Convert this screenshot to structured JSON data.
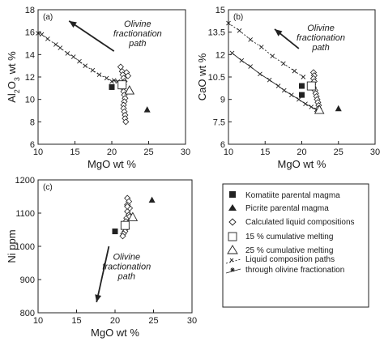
{
  "chart_data": [
    {
      "panel": "(a)",
      "type": "scatter",
      "xlabel": "MgO wt %",
      "ylabel": "Al2O3 wt %",
      "ylabel_parts": [
        "Al",
        "2",
        "O",
        "3",
        " wt %"
      ],
      "xlim": [
        10,
        30
      ],
      "ylim": [
        6,
        18
      ],
      "xticks": [
        10,
        15,
        20,
        25,
        30
      ],
      "yticks": [
        6,
        8,
        10,
        12,
        14,
        16,
        18
      ],
      "annotation": {
        "lines": [
          "Olivine",
          "fractionation",
          "path"
        ],
        "arrow_from": [
          20.3,
          14.3
        ],
        "arrow_to": [
          14.2,
          17.0
        ],
        "text_at": [
          23.5,
          16.5
        ]
      },
      "paths": [
        {
          "marker": "x",
          "dashed": true,
          "points": [
            [
              10.0,
              15.9
            ],
            [
              10.5,
              15.8
            ],
            [
              11.3,
              15.4
            ],
            [
              12.4,
              14.9
            ],
            [
              13.0,
              14.6
            ],
            [
              14.0,
              14.1
            ],
            [
              14.8,
              13.8
            ],
            [
              15.6,
              13.4
            ],
            [
              16.4,
              13.0
            ],
            [
              17.4,
              12.6
            ],
            [
              18.3,
              12.2
            ],
            [
              19.3,
              11.9
            ],
            [
              20.0,
              11.6
            ]
          ]
        },
        {
          "marker": "x",
          "dashed": false,
          "points": [
            [
              20.3,
              11.7
            ],
            [
              20.8,
              11.6
            ]
          ]
        }
      ],
      "calculated": [
        [
          21.2,
          12.9
        ],
        [
          21.4,
          12.5
        ],
        [
          21.5,
          12.2
        ],
        [
          21.6,
          11.9
        ],
        [
          21.7,
          11.6
        ],
        [
          21.6,
          11.3
        ],
        [
          21.5,
          11.0
        ],
        [
          21.6,
          10.7
        ],
        [
          21.7,
          10.4
        ],
        [
          21.8,
          10.1
        ],
        [
          21.7,
          9.8
        ],
        [
          21.6,
          9.5
        ],
        [
          21.6,
          9.2
        ],
        [
          21.7,
          8.9
        ],
        [
          21.8,
          8.6
        ],
        [
          21.8,
          8.3
        ],
        [
          21.9,
          8.0
        ],
        [
          22.0,
          12.4
        ],
        [
          22.2,
          12.1
        ]
      ],
      "komatiite": [
        [
          20.0,
          11.1
        ]
      ],
      "picrite": [
        [
          24.8,
          9.1
        ]
      ],
      "melt15": [
        [
          21.4,
          11.3
        ]
      ],
      "melt25": [
        [
          22.4,
          10.8
        ]
      ]
    },
    {
      "panel": "(b)",
      "type": "scatter",
      "xlabel": "MgO wt %",
      "ylabel": "CaO wt %",
      "xlim": [
        10,
        30
      ],
      "ylim": [
        6,
        15
      ],
      "xticks": [
        10,
        15,
        20,
        25,
        30
      ],
      "yticks": [
        6,
        7.5,
        9,
        10.5,
        12,
        13.5,
        15
      ],
      "annotation": {
        "lines": [
          "Olivine",
          "fractionation",
          "path"
        ],
        "arrow_from": [
          19.6,
          12.4
        ],
        "arrow_to": [
          16.3,
          13.7
        ],
        "text_at": [
          22.6,
          13.6
        ]
      },
      "paths": [
        {
          "marker": "x",
          "dashed": true,
          "points": [
            [
              10.0,
              14.1
            ],
            [
              11.5,
              13.6
            ],
            [
              13.0,
              13.0
            ],
            [
              14.5,
              12.5
            ],
            [
              16.0,
              11.9
            ],
            [
              17.5,
              11.4
            ],
            [
              19.0,
              10.9
            ],
            [
              20.2,
              10.5
            ]
          ]
        },
        {
          "marker": "x",
          "dashed": false,
          "points": [
            [
              10.5,
              12.1
            ],
            [
              11.8,
              11.6
            ],
            [
              13.0,
              11.2
            ],
            [
              14.3,
              10.7
            ],
            [
              15.6,
              10.3
            ],
            [
              16.8,
              9.9
            ],
            [
              17.6,
              9.6
            ],
            [
              18.6,
              9.3
            ],
            [
              19.6,
              9.0
            ],
            [
              20.5,
              8.7
            ],
            [
              21.3,
              8.5
            ],
            [
              22.0,
              8.3
            ],
            [
              22.4,
              8.2
            ]
          ]
        }
      ],
      "calculated": [
        [
          21.6,
          10.8
        ],
        [
          21.7,
          10.6
        ],
        [
          21.6,
          10.4
        ],
        [
          21.7,
          10.2
        ],
        [
          21.5,
          10.0
        ],
        [
          21.6,
          9.8
        ],
        [
          21.8,
          9.6
        ],
        [
          21.9,
          9.4
        ],
        [
          22.0,
          9.2
        ],
        [
          22.1,
          9.0
        ],
        [
          22.2,
          8.8
        ],
        [
          22.3,
          8.6
        ],
        [
          22.3,
          8.4
        ]
      ],
      "komatiite": [
        [
          20.0,
          9.9
        ],
        [
          20.0,
          9.3
        ]
      ],
      "picrite": [
        [
          25.0,
          8.4
        ]
      ],
      "melt15": [
        [
          21.3,
          9.9
        ]
      ],
      "melt25": [
        [
          22.4,
          8.3
        ]
      ]
    },
    {
      "panel": "(c)",
      "type": "scatter",
      "xlabel": "MgO wt %",
      "ylabel": "Ni ppm",
      "xlim": [
        10,
        30
      ],
      "ylim": [
        800,
        1200
      ],
      "xticks": [
        10,
        15,
        20,
        25,
        30
      ],
      "yticks": [
        800,
        900,
        1000,
        1100,
        1200
      ],
      "annotation": {
        "lines": [
          "Olivine",
          "fractionation",
          "path"
        ],
        "arrow_from": [
          19.2,
          1000
        ],
        "arrow_to": [
          17.6,
          832
        ],
        "text_at": [
          21.5,
          960
        ]
      },
      "paths": [],
      "calculated": [
        [
          21.6,
          1145
        ],
        [
          21.8,
          1135
        ],
        [
          21.6,
          1125
        ],
        [
          21.9,
          1115
        ],
        [
          21.6,
          1105
        ],
        [
          21.8,
          1095
        ],
        [
          21.5,
          1085
        ],
        [
          21.4,
          1075
        ],
        [
          21.2,
          1065
        ],
        [
          21.5,
          1055
        ],
        [
          21.3,
          1045
        ],
        [
          21.1,
          1038
        ],
        [
          21.0,
          1031
        ],
        [
          21.6,
          1120
        ],
        [
          21.9,
          1090
        ]
      ],
      "komatiite": [
        [
          20.0,
          1045
        ]
      ],
      "picrite": [
        [
          24.8,
          1140
        ]
      ],
      "melt15": [
        [
          21.3,
          1063
        ]
      ],
      "melt25": [
        [
          22.3,
          1088
        ]
      ]
    }
  ],
  "legend": {
    "komatiite": "Komatiite parental magma",
    "picrite": "Picrite parental magma",
    "calculated": "Calculated liquid compositions",
    "melt15": "15 % cumulative melting",
    "melt25": "25 % cumulative melting",
    "paths_line1": "Liquid composition paths",
    "paths_line2": "through olivine fractionation"
  }
}
